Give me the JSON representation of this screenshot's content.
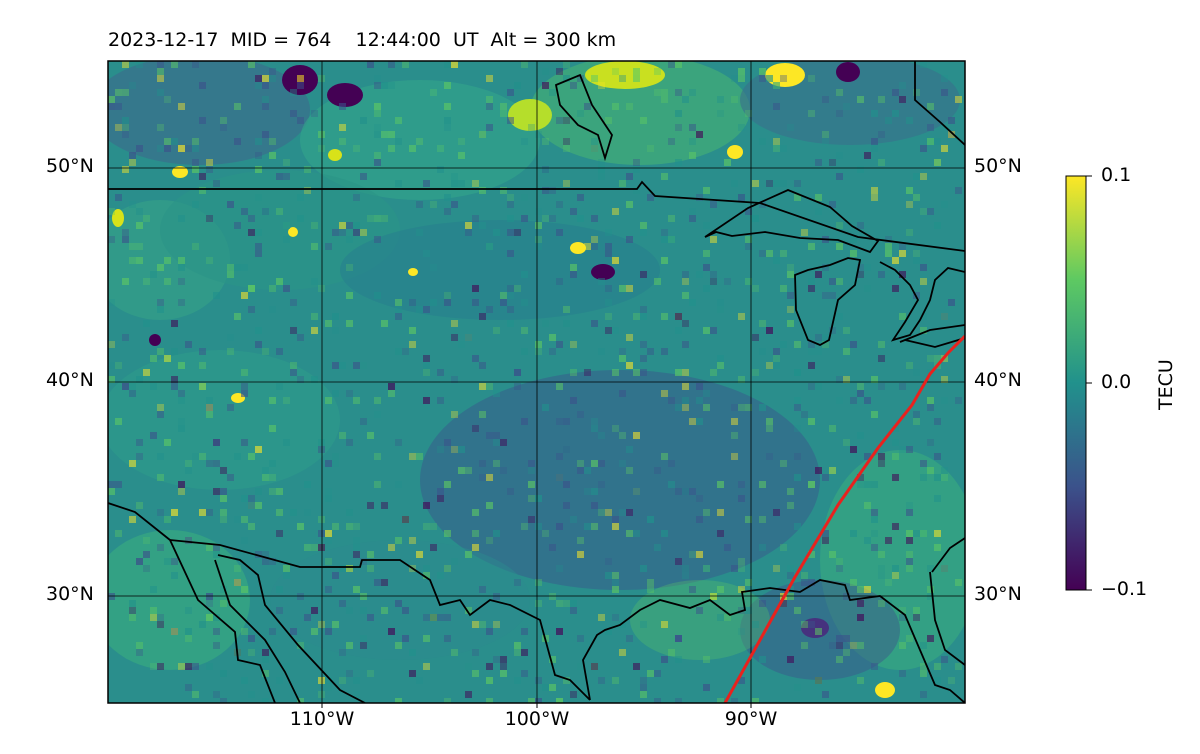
{
  "title": "2023-12-17  MID = 764    12:44:00  UT  Alt = 300 km",
  "map": {
    "lon_range": [
      -120,
      -80
    ],
    "lat_range": [
      25,
      55
    ],
    "lat_ticks": [
      "50°N",
      "40°N",
      "30°N"
    ],
    "lon_ticks": [
      "110°W",
      "100°W",
      "90°W"
    ],
    "colormap": "viridis",
    "background_color": "#2a8e8c",
    "track_color": "#e8221e",
    "coast_color": "#000000"
  },
  "colorbar": {
    "label": "TECU",
    "max_label": "0.1",
    "mid_label": "0.0",
    "min_label": "−0.1",
    "colors": [
      "#440154",
      "#3b528b",
      "#21918c",
      "#5ec962",
      "#fde725"
    ]
  }
}
